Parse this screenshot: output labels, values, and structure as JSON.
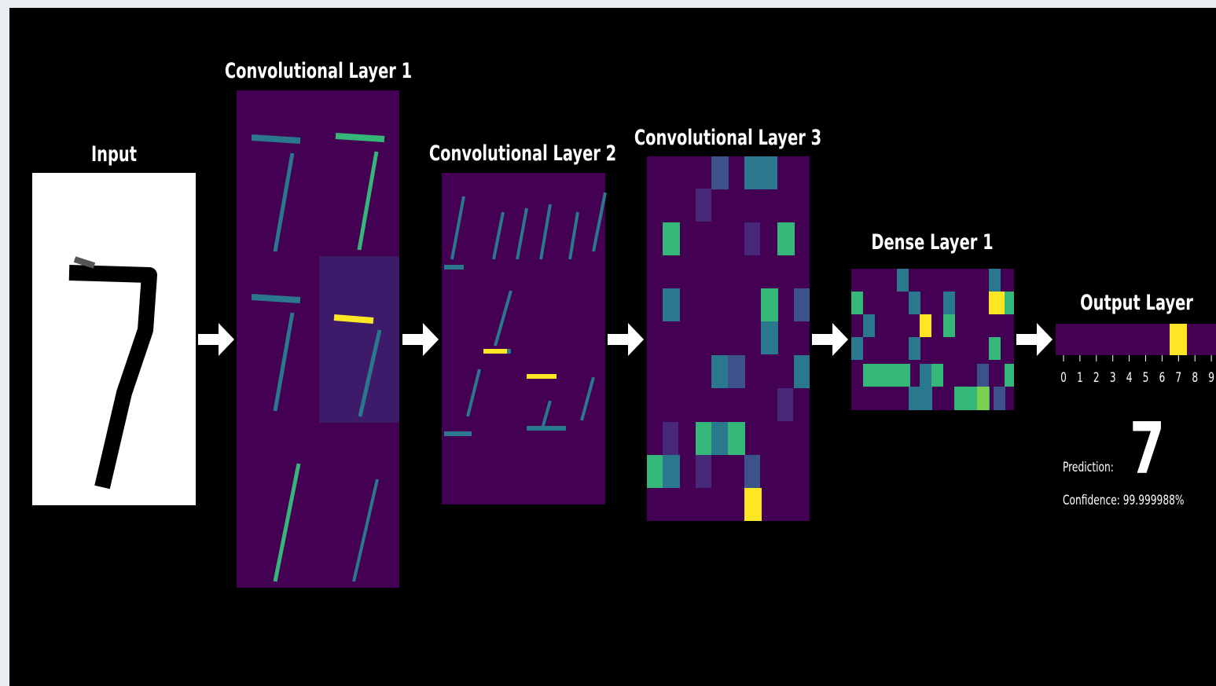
{
  "panels": [
    {
      "title": "Input"
    },
    {
      "title": "Convolutional Layer 1"
    },
    {
      "title": "Convolutional Layer 2"
    },
    {
      "title": "Convolutional Layer 3"
    },
    {
      "title": "Dense Layer 1"
    },
    {
      "title": "Output Layer"
    }
  ],
  "output": {
    "ticks": [
      "0",
      "1",
      "2",
      "3",
      "4",
      "5",
      "6",
      "7",
      "8",
      "9"
    ],
    "prediction_label": "Prediction:",
    "prediction": "7",
    "confidence": "Confidence: 99.999988%"
  }
}
